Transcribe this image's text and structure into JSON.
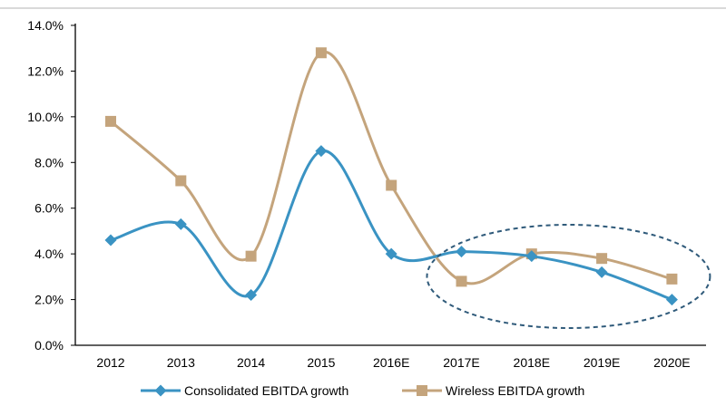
{
  "chart_data": {
    "type": "line",
    "title": "",
    "xlabel": "",
    "ylabel": "",
    "categories": [
      "2012",
      "2013",
      "2014",
      "2015",
      "2016E",
      "2017E",
      "2018E",
      "2019E",
      "2020E"
    ],
    "ylim": [
      0,
      14
    ],
    "yticks": [
      0,
      2,
      4,
      6,
      8,
      10,
      12,
      14
    ],
    "ytick_labels": [
      "0.0%",
      "2.0%",
      "4.0%",
      "6.0%",
      "8.0%",
      "10.0%",
      "12.0%",
      "14.0%"
    ],
    "grid": false,
    "legend_position": "bottom",
    "series": [
      {
        "name": "Consolidated EBITDA growth",
        "color": "#3a93c3",
        "marker": "diamond",
        "values": [
          4.6,
          5.3,
          2.2,
          8.5,
          4.0,
          4.1,
          3.9,
          3.2,
          2.0
        ]
      },
      {
        "name": "Wireless EBITDA growth",
        "color": "#c4a47c",
        "marker": "square",
        "values": [
          9.8,
          7.2,
          3.9,
          12.8,
          7.0,
          2.8,
          4.0,
          3.8,
          2.9
        ]
      }
    ],
    "annotation": {
      "shape": "dashed-ellipse",
      "color": "#2f5a7a",
      "covers_categories": [
        "2017E",
        "2018E",
        "2019E",
        "2020E"
      ]
    }
  }
}
